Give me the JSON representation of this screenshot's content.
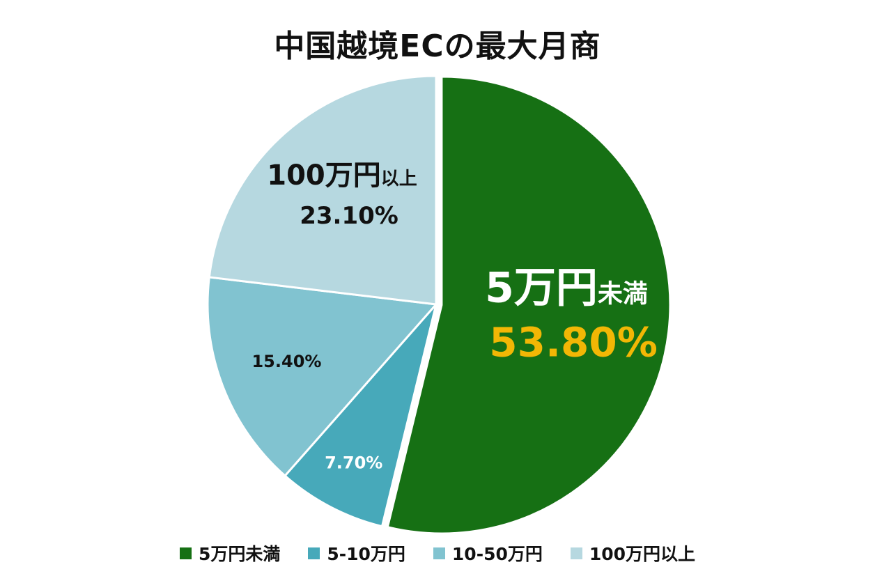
{
  "chart_data": {
    "type": "pie",
    "title": "中国越境ECの最大月商",
    "categories": [
      "5万円未満",
      "5-10万円",
      "10-50万円",
      "100万円以上"
    ],
    "values": [
      53.8,
      7.7,
      15.4,
      23.1
    ],
    "value_labels": [
      "53.80%",
      "7.70%",
      "15.40%",
      "23.10%"
    ],
    "colors": [
      "#167014",
      "#47a9ba",
      "#81c3d0",
      "#b6d8e0"
    ],
    "exploded_slice": "5万円未満",
    "legend_position": "bottom",
    "slice_labels": [
      {
        "category_main": "5万円",
        "category_suffix": "未満",
        "value": "53.80%",
        "label_color": "#ffffff",
        "value_color": "#f2b705"
      },
      {
        "category_main": "",
        "category_suffix": "",
        "value": "7.70%",
        "label_color": "#ffffff",
        "value_color": "#ffffff"
      },
      {
        "category_main": "",
        "category_suffix": "",
        "value": "15.40%",
        "label_color": "#111111",
        "value_color": "#111111"
      },
      {
        "category_main": "100万円",
        "category_suffix": "以上",
        "value": "23.10%",
        "label_color": "#111111",
        "value_color": "#111111"
      }
    ]
  }
}
